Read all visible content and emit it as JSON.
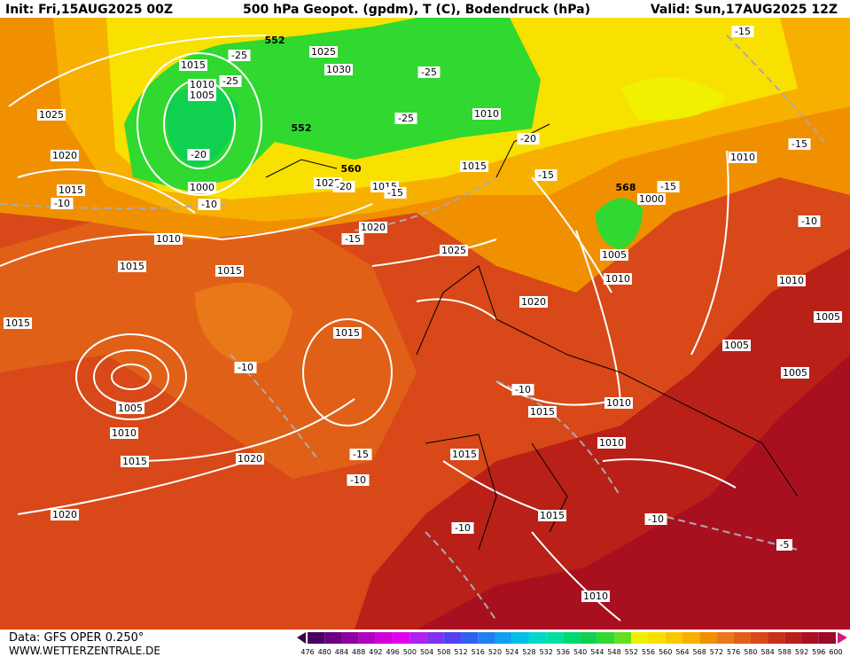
{
  "header": {
    "init": "Init: Fri,15AUG2025 00Z",
    "title": "500 hPa Geopot. (gpdm), T (C), Bodendruck (hPa)",
    "valid": "Valid: Sun,17AUG2025 12Z"
  },
  "footer": {
    "source": "Data: GFS OPER 0.250°",
    "site": "WWW.WETTERZENTRALE.DE"
  },
  "map": {
    "isobar_labels": [
      1015,
      1010,
      1005,
      1025,
      1020,
      1015,
      1000,
      1010,
      1015,
      1015,
      1015,
      1005,
      1010,
      1015,
      1020,
      1020,
      1015,
      1020,
      1025,
      1025,
      1015,
      1025,
      1030,
      1010,
      1015,
      1010,
      1000,
      1005,
      1010,
      1020,
      1010,
      1005,
      1005,
      1005,
      1010,
      1015,
      1010,
      1015,
      1015,
      1010
    ],
    "temperature_labels": [
      -25,
      -25,
      -25,
      -25,
      -20,
      -20,
      -20,
      -15,
      -15,
      -15,
      -15,
      -10,
      -10,
      -10,
      -15,
      -10,
      -10,
      -15,
      -10,
      -10,
      -10,
      -5,
      -15
    ],
    "height_labels": [
      552,
      552,
      560,
      568
    ]
  },
  "legend": {
    "ticks": [
      476,
      480,
      484,
      488,
      492,
      496,
      500,
      504,
      508,
      512,
      516,
      520,
      524,
      528,
      532,
      536,
      540,
      544,
      548,
      552,
      556,
      560,
      564,
      568,
      572,
      576,
      580,
      584,
      588,
      592,
      596,
      600
    ],
    "colors": [
      "#4b0060",
      "#6a0080",
      "#8c00a0",
      "#b000c0",
      "#d000d8",
      "#e000f0",
      "#b020f0",
      "#8030f0",
      "#5040f0",
      "#3060f0",
      "#2080f0",
      "#10a0f0",
      "#00c0e8",
      "#00d8c8",
      "#00e0a0",
      "#00d870",
      "#10d050",
      "#30d830",
      "#60e020",
      "#f0f000",
      "#f8e000",
      "#f8c800",
      "#f8b000",
      "#f09000",
      "#e87818",
      "#e06018",
      "#d84818",
      "#c83018",
      "#b82018",
      "#a81020",
      "#980a28"
    ]
  }
}
